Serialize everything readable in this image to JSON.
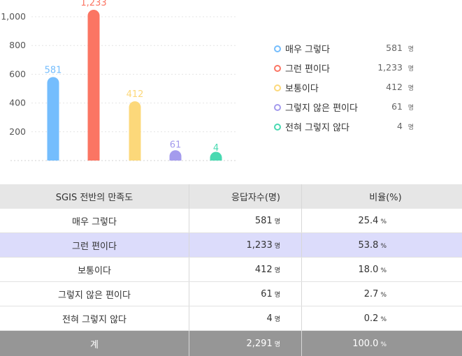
{
  "chart_data": {
    "type": "bar",
    "categories": [
      "매우 그렇다",
      "그런 편이다",
      "보통이다",
      "그렇지 않은 편이다",
      "전혀 그렇지 않다"
    ],
    "values": [
      581,
      1233,
      412,
      61,
      4
    ],
    "data_labels": [
      "581",
      "1,233",
      "412",
      "61",
      "4"
    ],
    "colors": [
      "#74bdfd",
      "#fb7563",
      "#fcd87a",
      "#a49bed",
      "#48d9b1"
    ],
    "y_ticks": [
      "200",
      "400",
      "600",
      "800",
      "1,000"
    ],
    "ylim": [
      0,
      1000
    ],
    "grid": true,
    "legend_placement": "right"
  },
  "legend": {
    "unit": "명",
    "items": [
      {
        "label": "매우 그렇다",
        "value": "581",
        "color": "#74bdfd"
      },
      {
        "label": "그런 편이다",
        "value": "1,233",
        "color": "#fb7563"
      },
      {
        "label": "보통이다",
        "value": "412",
        "color": "#fcd87a"
      },
      {
        "label": "그렇지 않은 편이다",
        "value": "61",
        "color": "#a49bed"
      },
      {
        "label": "전혀 그렇지 않다",
        "value": "4",
        "color": "#48d9b1"
      }
    ]
  },
  "table": {
    "headers": [
      "SGIS 전반의 만족도",
      "응답자수(명)",
      "비율(%)"
    ],
    "count_unit": "명",
    "pct_unit": "%",
    "rows": [
      {
        "label": "매우 그렇다",
        "count": "581",
        "pct": "25.4"
      },
      {
        "label": "그런 편이다",
        "count": "1,233",
        "pct": "53.8"
      },
      {
        "label": "보통이다",
        "count": "412",
        "pct": "18.0"
      },
      {
        "label": "그렇지 않은 편이다",
        "count": "61",
        "pct": "2.7"
      },
      {
        "label": "전혀 그렇지 않다",
        "count": "4",
        "pct": "0.2"
      }
    ],
    "total": {
      "label": "계",
      "count": "2,291",
      "pct": "100.0"
    }
  }
}
